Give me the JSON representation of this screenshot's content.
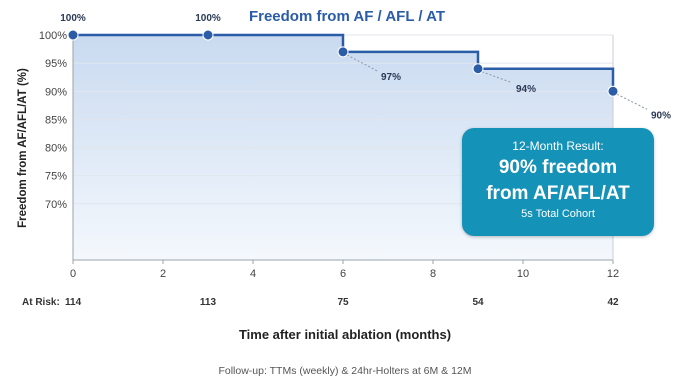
{
  "chart_data": {
    "type": "line",
    "title": "Freedom from AF / AFL / AT",
    "xlabel": "Time after initial ablation (months)",
    "ylabel": "Freedom from AF/AFL/AT (%)",
    "x_ticks": [
      0,
      2,
      4,
      6,
      8,
      10,
      12
    ],
    "y_ticks": [
      "100%",
      "95%",
      "90%",
      "85%",
      "80%",
      "75%",
      "70%"
    ],
    "y_tick_values": [
      100,
      95,
      90,
      85,
      80,
      75,
      70
    ],
    "xlim": [
      0,
      12
    ],
    "ylim": [
      60,
      100
    ],
    "series": [
      {
        "x": [
          0,
          3,
          6,
          9,
          12
        ],
        "y": [
          100,
          100,
          97,
          94,
          90
        ],
        "point_labels": [
          "100%",
          "100%",
          "97%",
          "94%",
          "90%"
        ]
      }
    ],
    "at_risk": {
      "label": "At Risk:",
      "entries": [
        {
          "x": 0,
          "value": "114"
        },
        {
          "x": 3,
          "value": "113"
        },
        {
          "x": 6,
          "value": "75"
        },
        {
          "x": 9,
          "value": "54"
        },
        {
          "x": 12,
          "value": "42"
        }
      ]
    },
    "grid": true,
    "line_color": "#2a5ca8"
  },
  "result_box": {
    "heading": "12-Month Result:",
    "main_line1": "90% freedom",
    "main_line2": "from AF/AFL/AT",
    "sub": "5s Total Cohort"
  },
  "footnote": "Follow-up: TTMs (weekly) & 24hr-Holters at 6M & 12M"
}
